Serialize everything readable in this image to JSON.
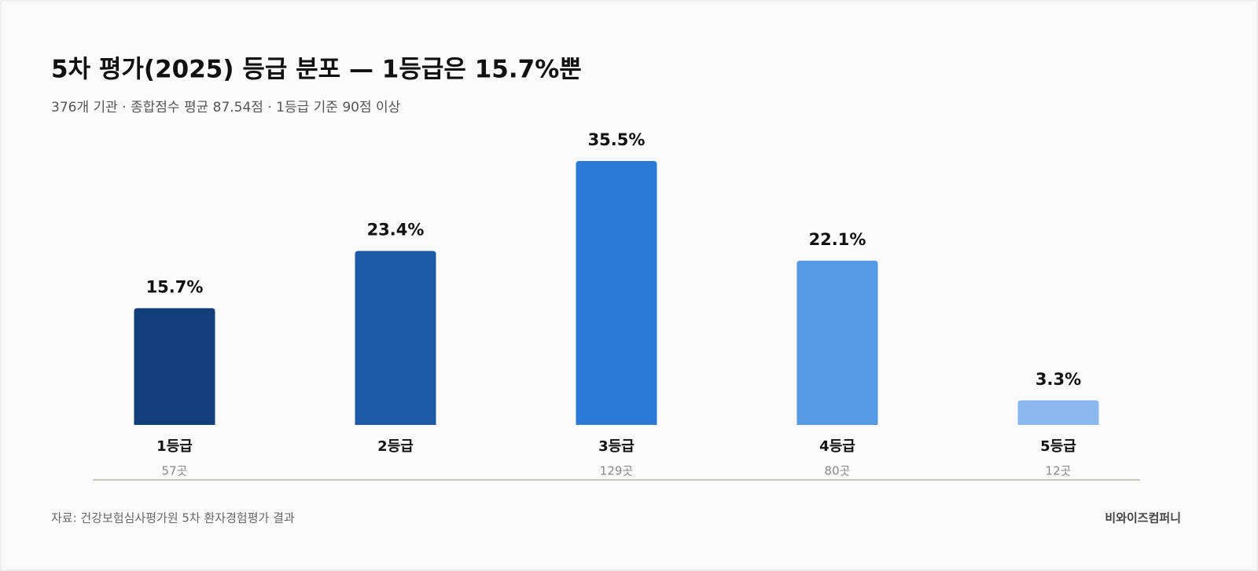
{
  "chart_data": {
    "type": "bar",
    "title": "5차 평가(2025) 등급 분포 — 1등급은 15.7%뿐",
    "subtitle": "376개 기관 · 종합점수 평균 87.54점 · 1등급 기준 90점 이상",
    "categories": [
      "1등급",
      "2등급",
      "3등급",
      "4등급",
      "5등급"
    ],
    "values": [
      15.7,
      23.4,
      35.5,
      22.1,
      3.3
    ],
    "value_labels": [
      "15.7%",
      "23.4%",
      "35.5%",
      "22.1%",
      "3.3%"
    ],
    "sublabels": [
      "57곳",
      null,
      "129곳",
      "80곳",
      "12곳"
    ],
    "colors": [
      "#123f7a",
      "#1c5aa8",
      "#2a79d4",
      "#5699e4",
      "#8ab8ee"
    ],
    "source": "자료: 건강보험심사평가원 5차 환자경험평가 결과",
    "brand": "비와이즈컴퍼니"
  }
}
